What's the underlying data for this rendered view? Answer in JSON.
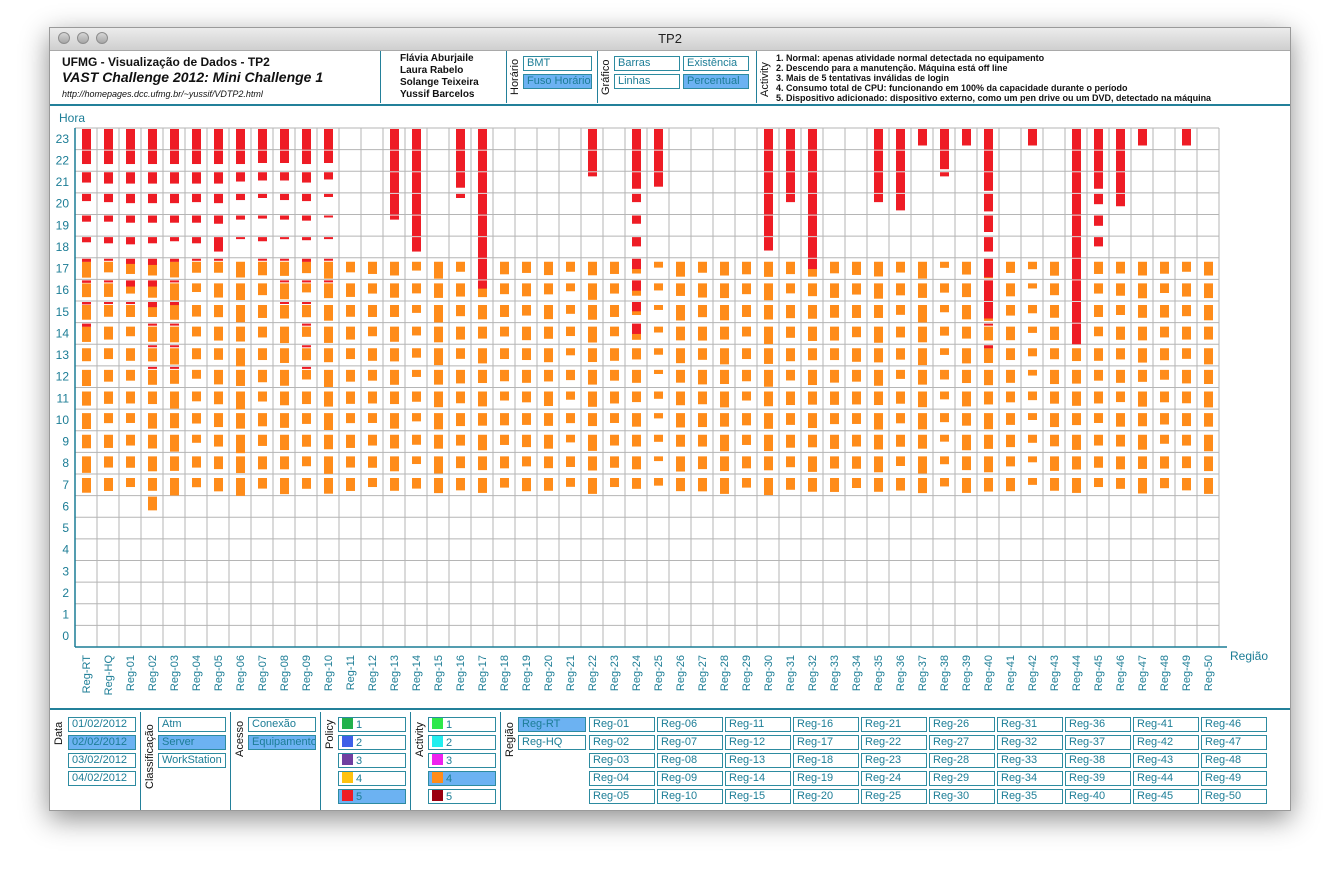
{
  "window": {
    "title": "TP2"
  },
  "header": {
    "line1": "UFMG - Visualização de Dados - TP2",
    "line2": "VAST Challenge 2012: Mini Challenge 1",
    "url": "http://homepages.dcc.ufmg.br/~yussif/VDTP2.html",
    "authors": [
      "Flávia Aburjaile",
      "Laura Rabelo",
      "Solange Teixeira",
      "Yussif Barcelos"
    ],
    "horario_label": "Horário",
    "horario_buttons": [
      {
        "label": "BMT",
        "selected": false
      },
      {
        "label": "Fuso Horário",
        "selected": true
      }
    ],
    "grafico_label": "Gráfico",
    "grafico_buttons": [
      {
        "label": "Barras",
        "selected": false
      },
      {
        "label": "Existência",
        "selected": false
      },
      {
        "label": "Linhas",
        "selected": false
      },
      {
        "label": "Percentual",
        "selected": true
      }
    ],
    "activity_label": "Activity",
    "activity_descriptions": [
      "1. Normal: apenas atividade normal detectada no equipamento",
      "2. Descendo para a manutenção. Máquina está off line",
      "3. Mais de 5 tentativas inválidas de login",
      "4. Consumo total de CPU: funcionando em 100% da capacidade durante o período",
      "5. Dispositivo adicionado: dispositivo externo, como um pen drive ou um DVD, detectado na máquina"
    ]
  },
  "chart_data": {
    "type": "heatmap",
    "ylabel": "Hora",
    "xlabel": "Região",
    "y_ticks": [
      0,
      1,
      2,
      3,
      4,
      5,
      6,
      7,
      8,
      9,
      10,
      11,
      12,
      13,
      14,
      15,
      16,
      17,
      18,
      19,
      20,
      21,
      22,
      23
    ],
    "categories": [
      "Reg-RT",
      "Reg-HQ",
      "Reg-01",
      "Reg-02",
      "Reg-03",
      "Reg-04",
      "Reg-05",
      "Reg-06",
      "Reg-07",
      "Reg-08",
      "Reg-09",
      "Reg-10",
      "Reg-11",
      "Reg-12",
      "Reg-13",
      "Reg-14",
      "Reg-15",
      "Reg-16",
      "Reg-17",
      "Reg-18",
      "Reg-19",
      "Reg-20",
      "Reg-21",
      "Reg-22",
      "Reg-23",
      "Reg-24",
      "Reg-25",
      "Reg-26",
      "Reg-27",
      "Reg-28",
      "Reg-29",
      "Reg-30",
      "Reg-31",
      "Reg-32",
      "Reg-33",
      "Reg-34",
      "Reg-35",
      "Reg-36",
      "Reg-37",
      "Reg-38",
      "Reg-39",
      "Reg-40",
      "Reg-41",
      "Reg-42",
      "Reg-43",
      "Reg-44",
      "Reg-45",
      "Reg-46",
      "Reg-47",
      "Reg-48",
      "Reg-49",
      "Reg-50"
    ],
    "value_unit": "percentual de máquinas na hora (0-1)",
    "orange_series": {
      "name": "4",
      "color": "#ff8c1a",
      "hours": [
        7,
        8,
        9,
        10,
        11,
        12,
        13,
        14,
        15,
        16,
        17
      ],
      "base_levels": [
        0.75,
        0.6,
        0.55,
        0.7,
        0.8,
        0.5,
        0.65,
        0.85,
        0.6,
        0.75,
        0.55,
        0.8,
        0.6,
        0.55,
        0.7,
        0.45,
        0.8,
        0.6,
        0.7,
        0.55,
        0.6,
        0.65,
        0.45,
        0.75,
        0.55,
        0.6,
        0.3,
        0.7,
        0.65,
        0.75,
        0.55,
        0.8,
        0.6,
        0.7,
        0.65,
        0.6,
        0.75,
        0.55,
        0.8,
        0.4,
        0.7,
        0.75,
        0.6,
        0.35,
        0.65,
        0.7,
        0.55,
        0.6,
        0.7,
        0.55,
        0.6,
        0.75
      ],
      "extra": [
        {
          "region": "Reg-02",
          "hour": 6,
          "value": 0.7
        }
      ]
    },
    "red_series": {
      "name": "5",
      "color": "#ee1c25",
      "cells": [
        {
          "region": "Reg-RT",
          "hours": [
            18,
            19,
            20,
            21,
            22,
            23
          ],
          "values": [
            0.25,
            0.3,
            0.35,
            0.5,
            0.65,
            1.0
          ]
        },
        {
          "region": "Reg-RT",
          "hours": [
            14,
            15,
            16,
            17
          ],
          "values": [
            0.15,
            0.12,
            0.12,
            0.15
          ]
        },
        {
          "region": "Reg-HQ",
          "hours": [
            18,
            19,
            20,
            21,
            22,
            23
          ],
          "values": [
            0.3,
            0.3,
            0.4,
            0.55,
            0.65,
            1.0
          ]
        },
        {
          "region": "Reg-HQ",
          "hours": [
            15,
            16,
            17
          ],
          "values": [
            0.1,
            0.1,
            0.1
          ]
        },
        {
          "region": "Reg-01",
          "hours": [
            18,
            19,
            20,
            21,
            22,
            23
          ],
          "values": [
            0.35,
            0.35,
            0.45,
            0.55,
            0.65,
            1.0
          ]
        },
        {
          "region": "Reg-01",
          "hours": [
            15,
            16,
            17
          ],
          "values": [
            0.1,
            0.3,
            0.25
          ]
        },
        {
          "region": "Reg-02",
          "hours": [
            12,
            13,
            14,
            15,
            16,
            17,
            18,
            19,
            20,
            21,
            22,
            23
          ],
          "values": [
            0.05,
            0.08,
            0.1,
            0.25,
            0.3,
            0.3,
            0.3,
            0.35,
            0.45,
            0.55,
            0.65,
            1.0
          ]
        },
        {
          "region": "Reg-03",
          "hours": [
            12,
            13,
            14,
            15,
            16,
            17,
            18,
            19,
            20,
            21,
            22,
            23
          ],
          "values": [
            0.06,
            0.06,
            0.08,
            0.15,
            0.1,
            0.15,
            0.2,
            0.35,
            0.45,
            0.55,
            0.65,
            1.0
          ]
        },
        {
          "region": "Reg-04",
          "hours": [
            17,
            18,
            19,
            20,
            21,
            22,
            23
          ],
          "values": [
            0.1,
            0.3,
            0.35,
            0.4,
            0.55,
            0.65,
            1.0
          ]
        },
        {
          "region": "Reg-05",
          "hours": [
            17,
            18,
            19,
            20,
            21,
            22,
            23
          ],
          "values": [
            0.1,
            0.7,
            0.4,
            0.45,
            0.55,
            0.65,
            1.0
          ]
        },
        {
          "region": "Reg-06",
          "hours": [
            18,
            19,
            20,
            21,
            22,
            23
          ],
          "values": [
            0.05,
            0.2,
            0.3,
            0.45,
            0.65,
            1.0
          ]
        },
        {
          "region": "Reg-07",
          "hours": [
            17,
            18,
            19,
            20,
            21,
            22,
            23
          ],
          "values": [
            0.06,
            0.2,
            0.15,
            0.2,
            0.4,
            0.6,
            1.0
          ]
        },
        {
          "region": "Reg-08",
          "hours": [
            15,
            16,
            17,
            18,
            19,
            20,
            21,
            22,
            23
          ],
          "values": [
            0.06,
            0.06,
            0.06,
            0.1,
            0.2,
            0.3,
            0.4,
            0.6,
            1.0
          ]
        },
        {
          "region": "Reg-09",
          "hours": [
            12,
            13,
            14,
            15,
            16,
            17,
            18,
            19,
            20,
            21,
            22,
            23
          ],
          "values": [
            0.1,
            0.1,
            0.1,
            0.1,
            0.1,
            0.15,
            0.15,
            0.25,
            0.35,
            0.5,
            0.65,
            1.0
          ]
        },
        {
          "region": "Reg-10",
          "hours": [
            16,
            17,
            18,
            19,
            20,
            21,
            22,
            23
          ],
          "values": [
            0.05,
            0.05,
            0.05,
            0.05,
            0.15,
            0.35,
            0.6,
            1.0
          ]
        },
        {
          "region": "Reg-13",
          "hours": [
            19,
            20,
            21,
            22,
            23
          ],
          "values": [
            0.2,
            1.0,
            1.0,
            1.0,
            1.0
          ]
        },
        {
          "region": "Reg-14",
          "hours": [
            18,
            19,
            20,
            21,
            22,
            23
          ],
          "values": [
            0.7,
            1.0,
            1.0,
            1.0,
            1.0,
            1.0
          ]
        },
        {
          "region": "Reg-16",
          "hours": [
            20,
            21,
            22,
            23
          ],
          "values": [
            0.2,
            0.75,
            1.0,
            1.0
          ]
        },
        {
          "region": "Reg-17",
          "hours": [
            16,
            17,
            18,
            19,
            20,
            21,
            22,
            23
          ],
          "values": [
            0.4,
            1.0,
            1.0,
            1.0,
            1.0,
            1.0,
            1.0,
            1.0
          ]
        },
        {
          "region": "Reg-22",
          "hours": [
            21,
            22,
            23
          ],
          "values": [
            0.2,
            1.0,
            1.0
          ]
        },
        {
          "region": "Reg-24",
          "hours": [
            14,
            15,
            16,
            17,
            18,
            19,
            20,
            21,
            22,
            23
          ],
          "values": [
            0.5,
            0.45,
            0.5,
            0.5,
            0.45,
            0.4,
            0.4,
            0.8,
            1.0,
            1.0
          ]
        },
        {
          "region": "Reg-25",
          "hours": [
            21,
            22,
            23
          ],
          "values": [
            0.7,
            1.0,
            1.0
          ]
        },
        {
          "region": "Reg-30",
          "hours": [
            18,
            19,
            20,
            21,
            22,
            23
          ],
          "values": [
            0.65,
            1.0,
            1.0,
            1.0,
            1.0,
            1.0
          ]
        },
        {
          "region": "Reg-31",
          "hours": [
            20,
            21,
            22,
            23
          ],
          "values": [
            0.4,
            1.0,
            1.0,
            1.0
          ]
        },
        {
          "region": "Reg-32",
          "hours": [
            17,
            18,
            19,
            20,
            21,
            22,
            23
          ],
          "values": [
            0.5,
            1.0,
            1.0,
            1.0,
            1.0,
            1.0,
            1.0
          ]
        },
        {
          "region": "Reg-35",
          "hours": [
            20,
            21,
            22,
            23
          ],
          "values": [
            0.4,
            1.0,
            1.0,
            1.0
          ]
        },
        {
          "region": "Reg-36",
          "hours": [
            20,
            21,
            22,
            23
          ],
          "values": [
            0.8,
            1.0,
            1.0,
            1.0
          ]
        },
        {
          "region": "Reg-37",
          "hours": [
            23
          ],
          "values": [
            0.8
          ]
        },
        {
          "region": "Reg-38",
          "hours": [
            21,
            22,
            23
          ],
          "values": [
            0.2,
            0.9,
            1.0
          ]
        },
        {
          "region": "Reg-39",
          "hours": [
            23
          ],
          "values": [
            0.8
          ]
        },
        {
          "region": "Reg-40",
          "hours": [
            13,
            14,
            15,
            16,
            17,
            18,
            19,
            20,
            21,
            22,
            23
          ],
          "values": [
            0.15,
            0.05,
            0.8,
            1.0,
            0.9,
            0.7,
            0.8,
            0.85,
            0.9,
            1.0,
            1.0
          ]
        },
        {
          "region": "Reg-42",
          "hours": [
            23
          ],
          "values": [
            0.8
          ]
        },
        {
          "region": "Reg-44",
          "hours": [
            14,
            15,
            16,
            17,
            18,
            19,
            20,
            21,
            22,
            23
          ],
          "values": [
            1.0,
            1.0,
            1.0,
            1.0,
            1.0,
            1.0,
            1.0,
            1.0,
            1.0,
            1.0
          ]
        },
        {
          "region": "Reg-45",
          "hours": [
            18,
            19,
            20,
            21,
            22,
            23
          ],
          "values": [
            0.45,
            0.5,
            0.5,
            0.8,
            1.0,
            1.0
          ]
        },
        {
          "region": "Reg-46",
          "hours": [
            20,
            21,
            22,
            23
          ],
          "values": [
            0.6,
            1.0,
            1.0,
            1.0
          ]
        },
        {
          "region": "Reg-47",
          "hours": [
            23
          ],
          "values": [
            0.8
          ]
        },
        {
          "region": "Reg-49",
          "hours": [
            23
          ],
          "values": [
            0.8
          ]
        }
      ]
    }
  },
  "filters": {
    "data_label": "Data",
    "dates": [
      {
        "label": "01/02/2012",
        "selected": false
      },
      {
        "label": "02/02/2012",
        "selected": true
      },
      {
        "label": "03/02/2012",
        "selected": false
      },
      {
        "label": "04/02/2012",
        "selected": false
      }
    ],
    "classificacao_label": "Classificação",
    "classificacao": [
      {
        "label": "Atm",
        "selected": false
      },
      {
        "label": "Server",
        "selected": true
      },
      {
        "label": "WorkStation",
        "selected": false
      }
    ],
    "acesso_label": "Acesso",
    "acesso": [
      {
        "label": "Conexão",
        "selected": false
      },
      {
        "label": "Equipamento",
        "selected": true
      }
    ],
    "policy_label": "Policy",
    "policy": [
      {
        "label": "1",
        "color": "#22b14c",
        "selected": false
      },
      {
        "label": "2",
        "color": "#3f5fe8",
        "selected": false
      },
      {
        "label": "3",
        "color": "#7040a0",
        "selected": false
      },
      {
        "label": "4",
        "color": "#ffc20e",
        "selected": false
      },
      {
        "label": "5",
        "color": "#ee1c25",
        "selected": true
      }
    ],
    "activity_label": "Activity",
    "activity": [
      {
        "label": "1",
        "color": "#2ee84a",
        "selected": false
      },
      {
        "label": "2",
        "color": "#22eeee",
        "selected": false
      },
      {
        "label": "3",
        "color": "#ee22ee",
        "selected": false
      },
      {
        "label": "4",
        "color": "#ff8c1a",
        "selected": true
      },
      {
        "label": "5",
        "color": "#9a0010",
        "selected": false
      }
    ],
    "regiao_label": "Região",
    "regiao_top": [
      {
        "label": "Reg-RT",
        "selected": true
      },
      {
        "label": "Reg-HQ",
        "selected": false
      }
    ],
    "regioes": [
      "Reg-01",
      "Reg-02",
      "Reg-03",
      "Reg-04",
      "Reg-05",
      "Reg-06",
      "Reg-07",
      "Reg-08",
      "Reg-09",
      "Reg-10",
      "Reg-11",
      "Reg-12",
      "Reg-13",
      "Reg-14",
      "Reg-15",
      "Reg-16",
      "Reg-17",
      "Reg-18",
      "Reg-19",
      "Reg-20",
      "Reg-21",
      "Reg-22",
      "Reg-23",
      "Reg-24",
      "Reg-25",
      "Reg-26",
      "Reg-27",
      "Reg-28",
      "Reg-29",
      "Reg-30",
      "Reg-31",
      "Reg-32",
      "Reg-33",
      "Reg-34",
      "Reg-35",
      "Reg-36",
      "Reg-37",
      "Reg-38",
      "Reg-39",
      "Reg-40",
      "Reg-41",
      "Reg-42",
      "Reg-43",
      "Reg-44",
      "Reg-45",
      "Reg-46",
      "Reg-47",
      "Reg-48",
      "Reg-49",
      "Reg-50"
    ]
  }
}
